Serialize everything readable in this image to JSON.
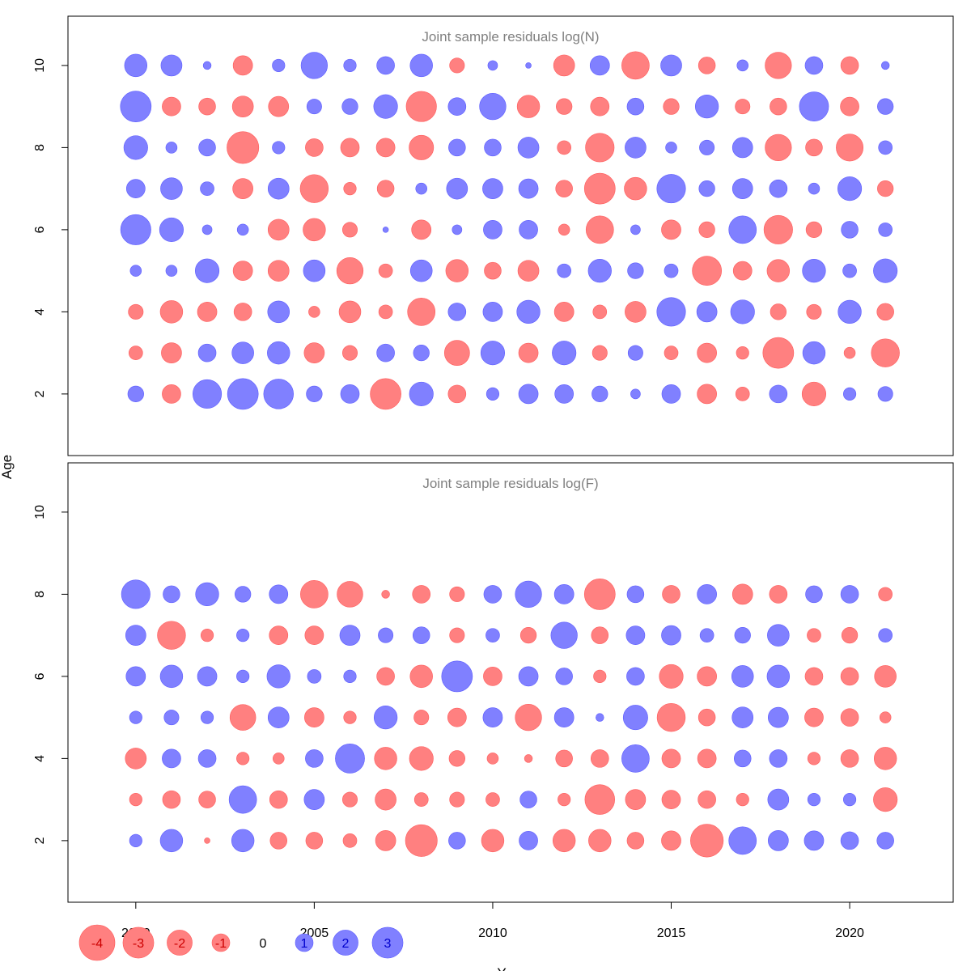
{
  "chart_data": {
    "type": "bubble",
    "ylabel": "Age",
    "xlabel": "Y",
    "colors": {
      "positive": "#8080ff",
      "negative": "#ff8080",
      "positive_edge": "#5c5cff",
      "negative_edge": "#ff5c5c"
    },
    "xlim": [
      1998.1,
      2022.9
    ],
    "x_ticks": [
      2000,
      2005,
      2010,
      2015,
      2020
    ],
    "years": [
      2000,
      2001,
      2002,
      2003,
      2004,
      2005,
      2006,
      2007,
      2008,
      2009,
      2010,
      2011,
      2012,
      2013,
      2014,
      2015,
      2016,
      2017,
      2018,
      2019,
      2020,
      2021
    ],
    "legend": {
      "values": [
        -4,
        -3,
        -2,
        -1,
        0,
        1,
        2,
        3
      ],
      "labels": [
        "-4",
        "-3",
        "-2",
        "-1",
        "0",
        "1",
        "2",
        "3"
      ]
    },
    "panels": [
      {
        "title": "Joint sample residuals log(N)",
        "ylim": [
          0.5,
          11.2
        ],
        "y_ticks": [
          2,
          4,
          6,
          8,
          10
        ],
        "ages": [
          2,
          3,
          4,
          5,
          6,
          7,
          8,
          9,
          10
        ],
        "residuals": [
          [
            0.8,
            -1.1,
            2.6,
            3.0,
            2.8,
            0.8,
            1.1,
            -3.0,
            1.8,
            -1.0,
            0.5,
            1.2,
            1.1,
            0.8,
            0.3,
            1.1,
            -1.2,
            -0.6,
            1.0,
            -1.8,
            0.5,
            0.7
          ],
          [
            -0.6,
            -1.3,
            1.0,
            1.5,
            1.6,
            -1.3,
            -0.7,
            1.0,
            0.8,
            -2.0,
            1.8,
            -1.2,
            1.8,
            -0.7,
            0.7,
            -0.6,
            -1.2,
            -0.5,
            -3.0,
            1.6,
            -0.4,
            -2.5
          ],
          [
            -0.7,
            -1.6,
            -1.2,
            -1.0,
            1.5,
            -0.4,
            -1.5,
            -0.6,
            -2.4,
            1.0,
            1.2,
            1.7,
            -1.2,
            -0.6,
            -1.4,
            2.6,
            1.3,
            1.8,
            -0.8,
            -0.7,
            1.7,
            -0.9
          ],
          [
            0.4,
            0.4,
            1.8,
            -1.2,
            -1.4,
            1.5,
            -2.2,
            -0.6,
            1.5,
            -1.6,
            -0.9,
            -1.4,
            0.6,
            1.7,
            0.8,
            0.6,
            -2.7,
            -1.1,
            -1.6,
            1.7,
            0.6,
            1.8
          ],
          [
            2.9,
            1.8,
            0.3,
            0.4,
            -1.4,
            -1.6,
            -0.7,
            0.1,
            -1.2,
            0.3,
            1.1,
            1.1,
            -0.4,
            -2.4,
            0.3,
            -1.2,
            -0.8,
            2.4,
            -2.6,
            -0.8,
            0.9,
            0.6
          ],
          [
            1.1,
            1.5,
            0.6,
            -1.3,
            1.4,
            -2.5,
            -0.5,
            -0.9,
            0.4,
            1.4,
            1.3,
            1.2,
            -0.9,
            -3.0,
            -1.6,
            2.6,
            0.8,
            1.3,
            1.0,
            0.4,
            1.8,
            -0.8
          ],
          [
            1.8,
            0.4,
            0.9,
            -3.2,
            0.5,
            -1.0,
            -1.1,
            -1.1,
            -1.9,
            0.9,
            0.9,
            1.4,
            -0.6,
            -2.6,
            1.4,
            0.4,
            0.7,
            1.3,
            -2.2,
            -0.9,
            -2.3,
            0.6
          ],
          [
            3.0,
            -1.1,
            -0.9,
            -1.4,
            -1.3,
            0.7,
            0.8,
            1.8,
            -2.9,
            1.0,
            2.2,
            -1.6,
            -0.8,
            -1.1,
            0.9,
            -0.8,
            1.7,
            -0.7,
            -0.9,
            2.7,
            -1.1,
            0.8
          ],
          [
            1.6,
            1.4,
            0.2,
            -1.2,
            0.5,
            2.2,
            0.5,
            1.0,
            1.6,
            -0.7,
            0.3,
            0.1,
            -1.4,
            1.2,
            -2.4,
            1.4,
            -0.9,
            0.4,
            -2.2,
            1.0,
            -1.0,
            0.2
          ]
        ]
      },
      {
        "title": "Joint sample residuals log(F)",
        "ylim": [
          0.5,
          11.2
        ],
        "y_ticks": [
          2,
          4,
          6,
          8,
          10
        ],
        "ages": [
          2,
          3,
          4,
          5,
          6,
          7,
          8
        ],
        "residuals": [
          [
            0.5,
            1.6,
            -0.1,
            1.6,
            -0.9,
            -0.9,
            -0.6,
            -1.3,
            -3.2,
            0.9,
            -1.6,
            1.1,
            -1.6,
            -1.6,
            -0.9,
            -1.2,
            -3.4,
            2.4,
            1.3,
            1.2,
            1.0,
            0.9
          ],
          [
            -0.5,
            -1.0,
            -0.9,
            2.4,
            -1.0,
            1.3,
            -0.7,
            -1.4,
            -0.6,
            -0.7,
            -0.6,
            0.9,
            -0.5,
            -2.8,
            -1.3,
            -1.1,
            -1.0,
            -0.5,
            1.4,
            0.5,
            0.5,
            -1.8
          ],
          [
            -1.4,
            1.1,
            1.0,
            -0.5,
            -0.4,
            1.0,
            2.7,
            -1.6,
            -1.8,
            -0.8,
            -0.4,
            -0.2,
            -0.9,
            -1.0,
            2.4,
            -1.1,
            -1.1,
            0.9,
            1.0,
            -0.5,
            -1.0,
            -1.6
          ],
          [
            0.5,
            0.7,
            0.5,
            -2.1,
            1.4,
            -1.2,
            -0.5,
            1.7,
            -0.7,
            -1.1,
            1.2,
            -2.2,
            1.2,
            0.2,
            1.9,
            -2.5,
            -0.9,
            1.4,
            1.3,
            -1.1,
            -1.0,
            -0.4
          ],
          [
            1.2,
            1.6,
            1.2,
            0.5,
            1.7,
            0.6,
            0.5,
            -1.0,
            -1.6,
            3.0,
            -1.1,
            1.2,
            0.9,
            -0.5,
            1.0,
            -1.8,
            -1.2,
            1.5,
            1.6,
            -1.0,
            -1.0,
            -1.5
          ],
          [
            1.3,
            -2.5,
            -0.5,
            0.5,
            -1.1,
            -1.1,
            1.3,
            0.7,
            0.9,
            -0.7,
            0.6,
            -0.8,
            2.2,
            -0.9,
            1.1,
            1.2,
            0.6,
            0.8,
            1.5,
            -0.6,
            -0.8,
            0.6
          ],
          [
            2.6,
            0.9,
            1.7,
            0.8,
            1.1,
            -2.4,
            -2.1,
            -0.2,
            -1.0,
            -0.7,
            1.0,
            2.2,
            1.2,
            -3.0,
            0.9,
            -1.0,
            1.2,
            -1.3,
            -1.0,
            0.9,
            1.0,
            -0.6
          ]
        ]
      }
    ]
  }
}
